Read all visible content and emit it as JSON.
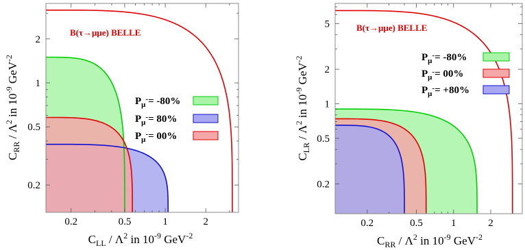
{
  "chart_data": [
    {
      "type": "area",
      "xscale": "log",
      "yscale": "log",
      "xlim": [
        0.13,
        3.5
      ],
      "ylim": [
        0.13,
        3.5
      ],
      "xticks": [
        0.2,
        0.5,
        1,
        2
      ],
      "xtick_labels": [
        "0.2",
        "0.5",
        "1",
        "2"
      ],
      "yticks": [
        0.2,
        0.5,
        1,
        2
      ],
      "ytick_labels": [
        "0.2",
        "0.5",
        "1",
        "2"
      ],
      "xlabel": {
        "main": "C",
        "sub": "LL",
        "mid": " / Λ",
        "sup": "2",
        "tail": " in 10",
        "sup2": "-9",
        "tail2": " GeV",
        "sup3": "-2"
      },
      "ylabel": {
        "main": "C",
        "sub": "RR",
        "mid": " / Λ",
        "sup": "2",
        "tail": "  in  10",
        "sup2": "-9",
        "tail2": "  GeV",
        "sup3": "-2"
      },
      "annotation": "B(τ→μμe) BELLE",
      "series": [
        {
          "name": "B(τ→μμe) BELLE",
          "kind": "line",
          "x_max": 3.15,
          "y_max": 3.15,
          "color": "#e00000"
        },
        {
          "name": "P_μ- = -80%",
          "label": "P",
          "sub": "μ",
          "sup": "-",
          "value": "= -80%",
          "x_max": 0.5,
          "y_max": 1.5,
          "color": "#00d000",
          "fill": "#a8f5a8"
        },
        {
          "name": "P_μ- = 80%",
          "label": "P",
          "sub": "μ",
          "sup": "-",
          "value": "= 80%",
          "x_max": 1.05,
          "y_max": 0.38,
          "color": "#1010d0",
          "fill": "#a8a8f0"
        },
        {
          "name": "P_μ- = 00%",
          "label": "P",
          "sub": "μ",
          "sup": "-",
          "value": "= 00%",
          "x_max": 0.57,
          "y_max": 0.58,
          "color": "#e00000",
          "fill": "#f5a8a8"
        }
      ],
      "legend_order": [
        1,
        2,
        3
      ]
    },
    {
      "type": "area",
      "xscale": "log",
      "yscale": "log",
      "xlim": [
        0.11,
        3.6
      ],
      "ylim": [
        0.11,
        7.5
      ],
      "xticks": [
        0.2,
        0.5,
        1,
        2
      ],
      "xtick_labels": [
        "0.2",
        "0.5",
        "1",
        "2"
      ],
      "yticks": [
        0.2,
        0.5,
        1,
        2,
        5
      ],
      "ytick_labels": [
        "0.2",
        "0.5",
        "1",
        "2",
        "5"
      ],
      "xlabel": {
        "main": "C",
        "sub": "RR",
        "mid": " / Λ",
        "sup": "2",
        "tail": " in 10",
        "sup2": "-9",
        "tail2": " GeV",
        "sup3": "-2"
      },
      "ylabel": {
        "main": "C",
        "sub": "LR",
        "mid": " / Λ",
        "sup": "2",
        "tail": "  in  10",
        "sup2": "-9",
        "tail2": "  GeV",
        "sup3": "-2"
      },
      "annotation": "B(τ→μμe) BELLE",
      "series": [
        {
          "name": "B(τ→μμe) BELLE",
          "kind": "line",
          "x_max": 3.0,
          "y_max": 6.5,
          "color": "#e00000"
        },
        {
          "name": "P_μ- = -80%",
          "label": "P",
          "sub": "μ",
          "sup": "-",
          "value": "= -80%",
          "x_max": 1.55,
          "y_max": 0.9,
          "color": "#00d000",
          "fill": "#a8f5a8"
        },
        {
          "name": "P_μ- = 00%",
          "label": "P",
          "sub": "μ",
          "sup": "-",
          "value": "=  00%",
          "x_max": 0.6,
          "y_max": 0.74,
          "color": "#e00000",
          "fill": "#f5a8a8"
        },
        {
          "name": "P_μ- = +80%",
          "label": "P",
          "sub": "μ",
          "sup": "-",
          "value": "= +80%",
          "x_max": 0.4,
          "y_max": 0.65,
          "color": "#1010d0",
          "fill": "#a8a8f0"
        }
      ],
      "legend_order": [
        1,
        2,
        3
      ]
    }
  ]
}
